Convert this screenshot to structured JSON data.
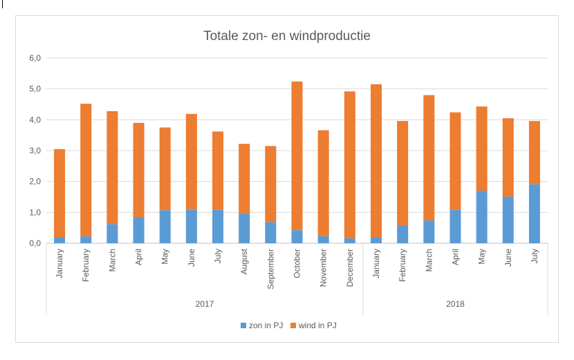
{
  "chart_data": {
    "type": "bar",
    "stacked": true,
    "title": "Totale zon- en windproductie",
    "categories": [
      "January",
      "February",
      "March",
      "April",
      "May",
      "June",
      "July",
      "August",
      "September",
      "October",
      "November",
      "December",
      "January",
      "February",
      "March",
      "April",
      "May",
      "June",
      "July"
    ],
    "groups": [
      {
        "label": "2017",
        "count": 12
      },
      {
        "label": "2018",
        "count": 7
      }
    ],
    "series": [
      {
        "name": "zon in PJ",
        "color": "#5b9bd5",
        "values": [
          0.2,
          0.22,
          0.62,
          0.84,
          1.07,
          1.08,
          1.08,
          0.97,
          0.68,
          0.42,
          0.23,
          0.16,
          0.19,
          0.57,
          0.74,
          1.08,
          1.7,
          1.51,
          1.91
        ]
      },
      {
        "name": "wind in PJ",
        "color": "#ed7d31",
        "values": [
          2.85,
          4.3,
          3.66,
          3.06,
          2.68,
          3.11,
          2.54,
          2.25,
          2.47,
          4.82,
          3.43,
          4.76,
          4.96,
          3.39,
          4.06,
          3.16,
          2.73,
          2.54,
          2.05
        ]
      }
    ],
    "y_ticks": [
      "0,0",
      "1,0",
      "2,0",
      "3,0",
      "4,0",
      "5,0",
      "6,0"
    ],
    "ylim": [
      0,
      6
    ],
    "grid": true,
    "legend_position": "bottom"
  }
}
